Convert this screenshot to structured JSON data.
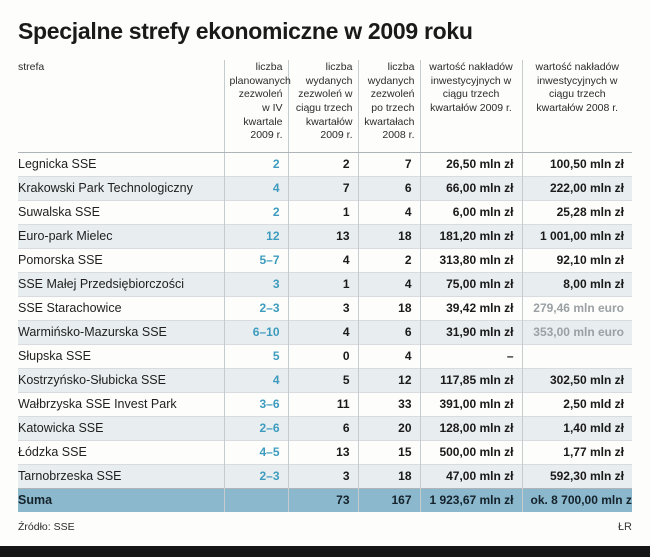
{
  "title": "Specjalne strefy ekonomiczne w 2009 roku",
  "source": "Źródło: SSE",
  "credit": "ŁR",
  "colors": {
    "accent_blue": "#3d9cbe",
    "row_alt_bg": "#e8edf0",
    "suma_bg": "#8cb8cd",
    "gray_value": "#9aa0a3",
    "bottom_bar": "#151515"
  },
  "chart_data": {
    "type": "table",
    "columns": [
      "strefa",
      "liczba planowanych zezwoleń w IV kwartale 2009 r.",
      "liczba wydanych zezwoleń w ciągu trzech kwartałów 2009 r.",
      "liczba wydanych zezwoleń po trzech kwartałach 2008 r.",
      "wartość nakładów inwestycyjnych w ciągu trzech kwartałów 2009 r.",
      "wartość nakładów inwestycyjnych w ciągu trzech kwartałów 2008 r."
    ],
    "rows": [
      {
        "name": "Legnicka SSE",
        "planned": "2",
        "issued2009": "2",
        "issued2008": "7",
        "value2009": "26,50 mln zł",
        "value2008": "100,50 mln zł",
        "gray2008": false
      },
      {
        "name": "Krakowski Park Technologiczny",
        "planned": "4",
        "issued2009": "7",
        "issued2008": "6",
        "value2009": "66,00 mln zł",
        "value2008": "222,00 mln zł",
        "gray2008": false
      },
      {
        "name": "Suwalska SSE",
        "planned": "2",
        "issued2009": "1",
        "issued2008": "4",
        "value2009": "6,00 mln zł",
        "value2008": "25,28 mln zł",
        "gray2008": false
      },
      {
        "name": "Euro-park Mielec",
        "planned": "12",
        "issued2009": "13",
        "issued2008": "18",
        "value2009": "181,20 mln zł",
        "value2008": "1 001,00 mln zł",
        "gray2008": false
      },
      {
        "name": "Pomorska SSE",
        "planned": "5–7",
        "issued2009": "4",
        "issued2008": "2",
        "value2009": "313,80 mln zł",
        "value2008": "92,10 mln zł",
        "gray2008": false
      },
      {
        "name": "SSE Małej Przedsiębiorczości",
        "planned": "3",
        "issued2009": "1",
        "issued2008": "4",
        "value2009": "75,00 mln zł",
        "value2008": "8,00 mln zł",
        "gray2008": false
      },
      {
        "name": "SSE Starachowice",
        "planned": "2–3",
        "issued2009": "3",
        "issued2008": "18",
        "value2009": "39,42 mln zł",
        "value2008": "279,46 mln euro",
        "gray2008": true
      },
      {
        "name": "Warmińsko-Mazurska SSE",
        "planned": "6–10",
        "issued2009": "4",
        "issued2008": "6",
        "value2009": "31,90 mln zł",
        "value2008": "353,00 mln euro",
        "gray2008": true
      },
      {
        "name": "Słupska SSE",
        "planned": "5",
        "issued2009": "0",
        "issued2008": "4",
        "value2009": "–",
        "value2008": "",
        "gray2008": false
      },
      {
        "name": "Kostrzyńsko-Słubicka SSE",
        "planned": "4",
        "issued2009": "5",
        "issued2008": "12",
        "value2009": "117,85 mln zł",
        "value2008": "302,50 mln zł",
        "gray2008": false
      },
      {
        "name": "Wałbrzyska SSE Invest Park",
        "planned": "3–6",
        "issued2009": "11",
        "issued2008": "33",
        "value2009": "391,00 mln zł",
        "value2008": "2,50 mld zł",
        "gray2008": false
      },
      {
        "name": "Katowicka SSE",
        "planned": "2–6",
        "issued2009": "6",
        "issued2008": "20",
        "value2009": "128,00 mln zł",
        "value2008": "1,40 mld zł",
        "gray2008": false
      },
      {
        "name": "Łódzka SSE",
        "planned": "4–5",
        "issued2009": "13",
        "issued2008": "15",
        "value2009": "500,00 mln zł",
        "value2008": "1,77 mln zł",
        "gray2008": false
      },
      {
        "name": "Tarnobrzeska SSE",
        "planned": "2–3",
        "issued2009": "3",
        "issued2008": "18",
        "value2009": "47,00 mln zł",
        "value2008": "592,30 mln zł",
        "gray2008": false
      }
    ],
    "suma": {
      "label": "Suma",
      "planned": "",
      "issued2009": "73",
      "issued2008": "167",
      "value2009": "1 923,67 mln zł",
      "value2008": "ok. 8 700,00 mln zł"
    }
  }
}
